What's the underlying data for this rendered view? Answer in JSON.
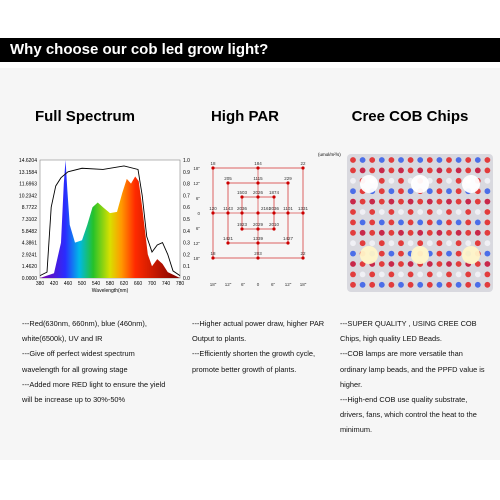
{
  "banner": {
    "title": "Why choose our cob led grow light?"
  },
  "columns": [
    {
      "heading": "Full Spectrum",
      "paragraphs": [
        "---Red(630nm, 660nm), blue (460nm), white(6500k), UV and IR",
        "---Give off perfect  widest spectrum wavelength for all growing stage",
        "---Added more RED light to ensure the yield will be increase up to 30%-50%"
      ]
    },
    {
      "heading": "High PAR",
      "paragraphs": [
        "---Higher actual power draw, higher PAR Output to plants.",
        "---Efficiently shorten the growth cycle, promote better growth of plants."
      ]
    },
    {
      "heading": "Cree COB Chips",
      "paragraphs": [
        "---SUPER QUALITY , USING CREE COB Chips, high quality LED Beads.",
        "---COB lamps are more versatile than ordinary lamp beads, and the PPFD value is higher.",
        "---High-end COB use quality substrate, drivers, fans, which control the heat to the minimum."
      ]
    }
  ],
  "spectrum": {
    "left_ticks": [
      "14.6204",
      "13.1584",
      "11.6963",
      "10.2342",
      "8.7722",
      "7.3102",
      "5.8482",
      "4.3861",
      "2.9241",
      "1.4620",
      "0.0000"
    ],
    "right_ticks": [
      "1.0",
      "0.9",
      "0.8",
      "0.7",
      "0.6",
      "0.5",
      "0.4",
      "0.3",
      "0.2",
      "0.1",
      "0.0"
    ],
    "x_ticks": [
      "380",
      "420",
      "460",
      "500",
      "540",
      "580",
      "620",
      "660",
      "700",
      "740",
      "780"
    ],
    "x_label": "Wavelength(nm)"
  },
  "par": {
    "unit": "(umol/m²/s)",
    "left_ticks": [
      "18\"",
      "12\"",
      "6\"",
      "0",
      "6\"",
      "12\"",
      "18\""
    ],
    "bottom_ticks": [
      "18\"",
      "12\"",
      "6\"",
      "0",
      "6\"",
      "12\"",
      "18\""
    ],
    "outer": [
      "18",
      "184",
      "22",
      "120",
      "1331",
      "18",
      "203",
      "22"
    ],
    "middle": [
      "205",
      "1115",
      "229",
      "1143",
      "1101",
      "1421",
      "1339",
      "1427"
    ],
    "inner": [
      "1503",
      "2026",
      "1874",
      "2036",
      "2036",
      "1923",
      "2029",
      "2010"
    ],
    "center": "2161"
  }
}
